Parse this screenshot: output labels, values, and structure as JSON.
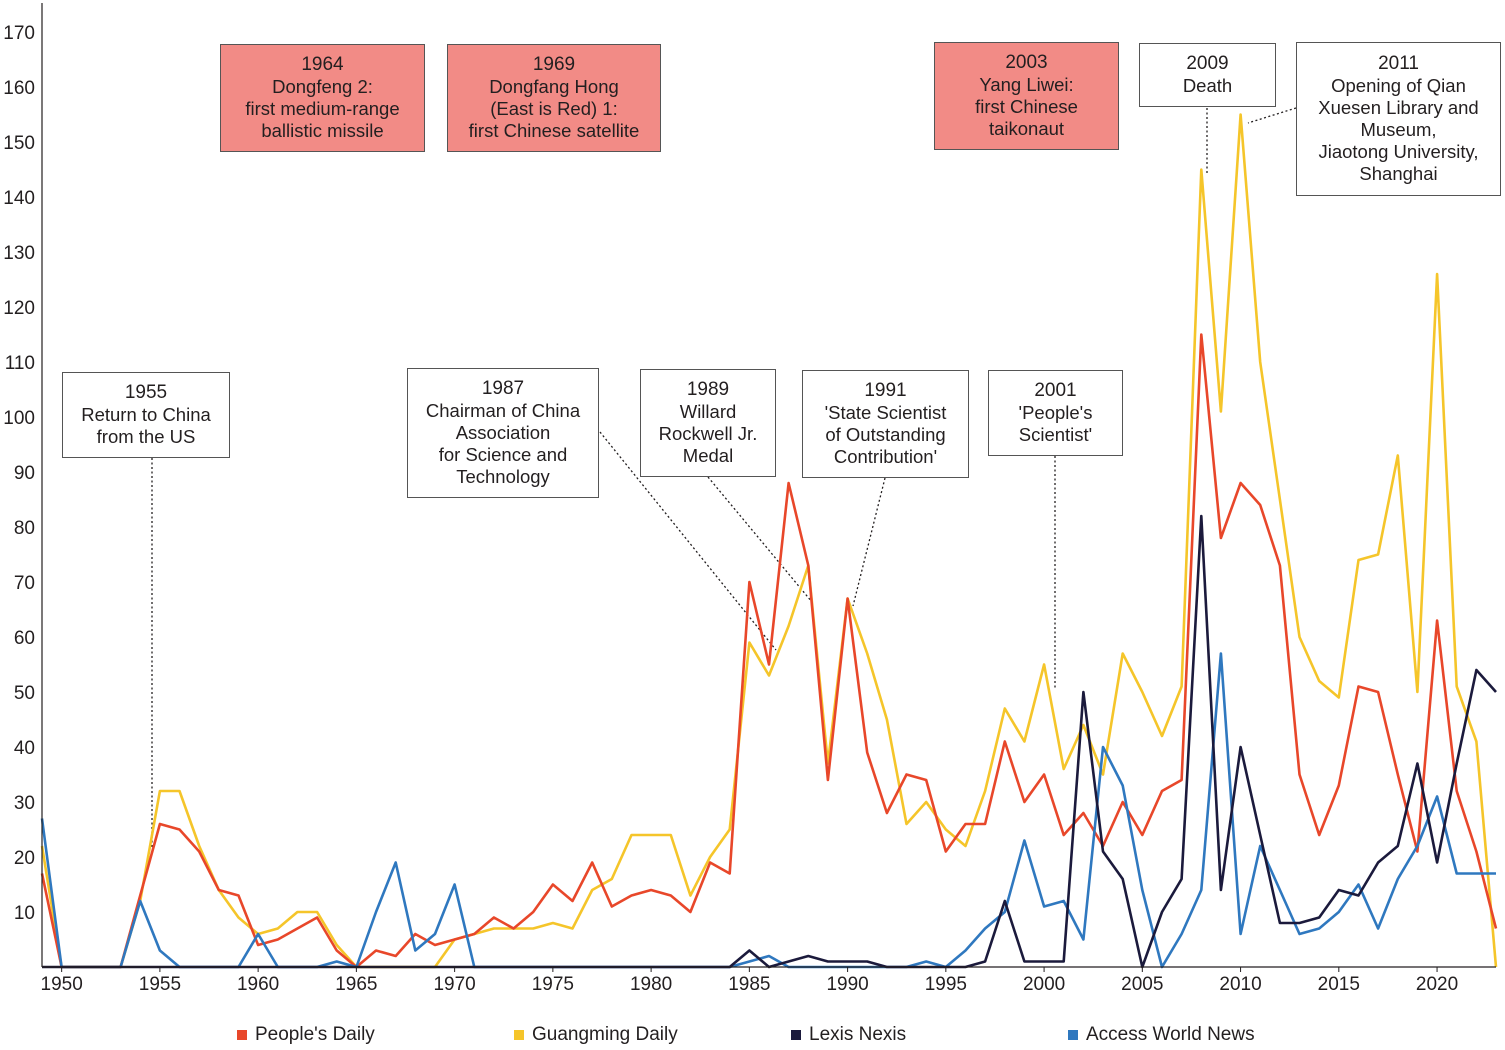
{
  "chart_data": {
    "type": "line",
    "title": "",
    "xlabel": "",
    "ylabel": "",
    "xlim": [
      1949,
      2023
    ],
    "ylim": [
      0,
      172
    ],
    "x_ticks": [
      "1950",
      "1955",
      "1960",
      "1965",
      "1970",
      "1975",
      "1980",
      "1985",
      "1990",
      "1995",
      "2000",
      "2005",
      "2010",
      "2015",
      "2020"
    ],
    "y_ticks": [
      "10",
      "20",
      "30",
      "40",
      "50",
      "60",
      "70",
      "80",
      "90",
      "100",
      "110",
      "120",
      "130",
      "140",
      "150",
      "160",
      "170"
    ],
    "x": [
      1949,
      1950,
      1951,
      1952,
      1953,
      1954,
      1955,
      1956,
      1957,
      1958,
      1959,
      1960,
      1961,
      1962,
      1963,
      1964,
      1965,
      1966,
      1967,
      1968,
      1969,
      1970,
      1971,
      1972,
      1973,
      1974,
      1975,
      1976,
      1977,
      1978,
      1979,
      1980,
      1981,
      1982,
      1983,
      1984,
      1985,
      1986,
      1987,
      1988,
      1989,
      1990,
      1991,
      1992,
      1993,
      1994,
      1995,
      1996,
      1997,
      1998,
      1999,
      2000,
      2001,
      2002,
      2003,
      2004,
      2005,
      2006,
      2007,
      2008,
      2009,
      2010,
      2011,
      2012,
      2013,
      2014,
      2015,
      2016,
      2017,
      2018,
      2019,
      2020,
      2021,
      2022,
      2023
    ],
    "series": [
      {
        "name": "People's Daily",
        "color": "#e8472a",
        "values": [
          17,
          0,
          0,
          0,
          0,
          13,
          26,
          25,
          21,
          14,
          13,
          4,
          5,
          7,
          9,
          3,
          0,
          3,
          2,
          6,
          4,
          5,
          6,
          9,
          7,
          10,
          15,
          12,
          19,
          11,
          13,
          14,
          13,
          10,
          19,
          17,
          70,
          55,
          88,
          73,
          34,
          67,
          39,
          28,
          35,
          34,
          21,
          26,
          26,
          41,
          30,
          35,
          24,
          28,
          22,
          30,
          24,
          32,
          34,
          115,
          78,
          88,
          84,
          73,
          35,
          24,
          33,
          51,
          50,
          35,
          21,
          63,
          32,
          21,
          7
        ]
      },
      {
        "name": "Guangming Daily",
        "color": "#f5c52a",
        "values": [
          22,
          0,
          0,
          0,
          0,
          12,
          32,
          32,
          22,
          14,
          9,
          6,
          7,
          10,
          10,
          4,
          0,
          0,
          0,
          0,
          0,
          5,
          6,
          7,
          7,
          7,
          8,
          7,
          14,
          16,
          24,
          24,
          24,
          13,
          20,
          25,
          59,
          53,
          62,
          73,
          37,
          67,
          57,
          45,
          26,
          30,
          25,
          22,
          32,
          47,
          41,
          55,
          36,
          44,
          35,
          57,
          50,
          42,
          51,
          145,
          101,
          155,
          110,
          85,
          60,
          52,
          49,
          74,
          75,
          93,
          50,
          126,
          51,
          41,
          0
        ]
      },
      {
        "name": "Lexis Nexis",
        "color": "#1b1a3c",
        "values": [
          0,
          0,
          0,
          0,
          0,
          0,
          0,
          0,
          0,
          0,
          0,
          0,
          0,
          0,
          0,
          0,
          0,
          0,
          0,
          0,
          0,
          0,
          0,
          0,
          0,
          0,
          0,
          0,
          0,
          0,
          0,
          0,
          0,
          0,
          0,
          0,
          3,
          0,
          1,
          2,
          1,
          1,
          1,
          0,
          0,
          0,
          0,
          0,
          1,
          12,
          1,
          1,
          1,
          50,
          21,
          16,
          0,
          10,
          16,
          82,
          14,
          40,
          24,
          8,
          8,
          9,
          14,
          13,
          19,
          22,
          37,
          19,
          37,
          54,
          50
        ]
      },
      {
        "name": "Access World News",
        "color": "#2f78bf",
        "values": [
          27,
          0,
          0,
          0,
          0,
          12,
          3,
          0,
          0,
          0,
          0,
          6,
          0,
          0,
          0,
          1,
          0,
          10,
          19,
          3,
          6,
          15,
          0,
          0,
          0,
          0,
          0,
          0,
          0,
          0,
          0,
          0,
          0,
          0,
          0,
          0,
          1,
          2,
          0,
          0,
          0,
          0,
          0,
          0,
          0,
          1,
          0,
          3,
          7,
          10,
          23,
          11,
          12,
          5,
          40,
          33,
          14,
          0,
          6,
          14,
          57,
          6,
          22,
          14,
          6,
          7,
          10,
          15,
          7,
          16,
          22,
          31,
          17,
          17,
          17
        ]
      }
    ],
    "legend_position": "bottom",
    "grid": false
  },
  "annotations": [
    {
      "year": "1964",
      "lines": [
        "Dongfeng 2:",
        "first medium-range",
        "ballistic missile"
      ],
      "highlight": true
    },
    {
      "year": "1969",
      "lines": [
        "Dongfang Hong",
        "(East is Red) 1:",
        "first Chinese satellite"
      ],
      "highlight": true
    },
    {
      "year": "2003",
      "lines": [
        "Yang Liwei:",
        "first Chinese",
        "taikonaut"
      ],
      "highlight": true
    },
    {
      "year": "2009",
      "lines": [
        "Death"
      ],
      "highlight": false
    },
    {
      "year": "2011",
      "lines": [
        "Opening of Qian",
        "Xuesen Library and",
        "Museum,",
        "Jiaotong University,",
        "Shanghai"
      ],
      "highlight": false
    },
    {
      "year": "1955",
      "lines": [
        "Return to China",
        "from the US"
      ],
      "highlight": false
    },
    {
      "year": "1987",
      "lines": [
        "Chairman of China",
        "Association",
        "for Science and",
        "Technology"
      ],
      "highlight": false
    },
    {
      "year": "1989",
      "lines": [
        "Willard",
        "Rockwell Jr.",
        "Medal"
      ],
      "highlight": false
    },
    {
      "year": "1991",
      "lines": [
        "'State Scientist",
        "of Outstanding",
        "Contribution'"
      ],
      "highlight": false
    },
    {
      "year": "2001",
      "lines": [
        "'People's",
        "Scientist'"
      ],
      "highlight": false
    }
  ]
}
